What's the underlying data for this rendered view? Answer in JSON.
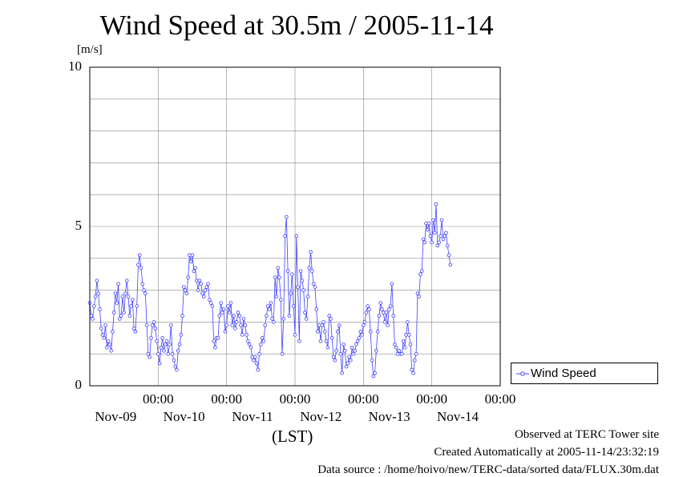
{
  "title": "Wind Speed at 30.5m / 2005-11-14",
  "unit_label": "[m/s]",
  "x_axis_label": "(LST)",
  "footer": {
    "site": "Observed at TERC Tower site",
    "created": "Created Automatically at 2005-11-14/23:32:19",
    "source": "Data source : /home/hoivo/new/TERC-data/sorted  data/FLUX.30m.dat"
  },
  "colors": {
    "series": "#4040ff",
    "grid": "#888888",
    "axis": "#000000"
  },
  "chart_data": {
    "type": "line",
    "ylim": [
      0,
      10
    ],
    "yticks": [
      "0",
      "5",
      "10"
    ],
    "xlim_days": [
      8.0,
      14.0
    ],
    "grid": true,
    "legend_position": "right",
    "x_ticks": [
      {
        "time": "00:00",
        "date": "Nov-09"
      },
      {
        "time": "00:00",
        "date": "Nov-10"
      },
      {
        "time": "00:00",
        "date": "Nov-11"
      },
      {
        "time": "00:00",
        "date": "Nov-12"
      },
      {
        "time": "00:00",
        "date": "Nov-13"
      },
      {
        "time": "00:00",
        "date": "Nov-14"
      }
    ],
    "series": [
      {
        "name": "Wind Speed",
        "x_start": "2005-11-08 00:00",
        "interval_minutes": 30,
        "values": [
          2.6,
          2.2,
          2.1,
          2.5,
          2.8,
          3.3,
          2.9,
          2.4,
          1.8,
          1.6,
          1.5,
          1.9,
          1.2,
          1.4,
          1.3,
          1.1,
          1.7,
          2.3,
          2.9,
          2.6,
          3.2,
          2.1,
          2.2,
          2.8,
          2.3,
          2.9,
          3.3,
          2.8,
          2.2,
          2.5,
          2.7,
          1.8,
          1.7,
          2.5,
          3.8,
          4.1,
          3.7,
          3.2,
          3.0,
          2.9,
          1.9,
          1.0,
          0.9,
          1.5,
          1.9,
          2.0,
          1.8,
          1.4,
          1.0,
          0.7,
          1.2,
          1.5,
          1.1,
          1.3,
          1.4,
          1.0,
          1.3,
          1.9,
          1.0,
          0.8,
          0.6,
          0.5,
          1.1,
          1.3,
          1.6,
          2.2,
          3.1,
          3.0,
          2.9,
          3.4,
          4.1,
          3.9,
          4.1,
          3.6,
          3.7,
          3.3,
          3.0,
          3.3,
          3.2,
          2.9,
          2.8,
          3.0,
          3.1,
          3.2,
          2.7,
          2.6,
          2.5,
          1.4,
          1.2,
          1.5,
          1.5,
          2.2,
          2.6,
          2.3,
          2.4,
          1.7,
          1.9,
          2.5,
          2.3,
          2.6,
          1.9,
          2.2,
          1.8,
          2.0,
          2.3,
          2.2,
          1.9,
          1.6,
          2.1,
          1.9,
          1.6,
          1.4,
          1.3,
          1.2,
          0.9,
          0.8,
          0.9,
          0.7,
          0.5,
          1.0,
          1.3,
          1.5,
          1.4,
          1.9,
          2.2,
          2.5,
          2.4,
          2.6,
          2.1,
          2.0,
          3.4,
          2.8,
          3.7,
          3.4,
          2.7,
          1.0,
          2.1,
          4.7,
          5.3,
          3.6,
          2.2,
          2.9,
          3.5,
          2.5,
          1.6,
          4.7,
          3.1,
          1.4,
          3.6,
          3.3,
          3.0,
          2.3,
          2.1,
          2.8,
          3.7,
          4.2,
          3.6,
          3.2,
          3.1,
          2.4,
          1.7,
          1.9,
          1.4,
          1.9,
          2.0,
          1.7,
          1.4,
          1.2,
          2.2,
          2.1,
          1.5,
          0.9,
          0.8,
          1.1,
          1.7,
          1.9,
          1.0,
          0.4,
          1.3,
          1.1,
          0.6,
          0.7,
          0.9,
          0.8,
          1.2,
          1.0,
          1.1,
          1.3,
          1.4,
          1.5,
          1.7,
          1.6,
          1.9,
          2.0,
          2.3,
          2.5,
          2.4,
          1.7,
          0.8,
          0.3,
          0.4,
          1.1,
          1.7,
          2.2,
          2.6,
          2.4,
          2.3,
          2.0,
          2.3,
          1.9,
          2.4,
          2.5,
          3.2,
          2.2,
          1.3,
          1.2,
          1.0,
          1.1,
          1.0,
          1.0,
          1.4,
          1.2,
          1.6,
          2.0,
          1.6,
          1.3,
          0.5,
          0.4,
          0.8,
          1.0,
          2.9,
          2.8,
          3.5,
          3.6,
          4.6,
          4.5,
          5.1,
          4.9,
          5.1,
          4.7,
          4.5,
          5.2,
          4.8,
          5.7,
          4.4,
          4.5,
          4.7,
          5.2,
          4.6,
          4.7,
          4.8,
          4.4,
          4.1,
          3.8
        ]
      }
    ]
  }
}
